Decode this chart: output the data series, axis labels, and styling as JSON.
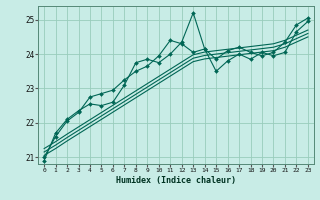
{
  "title": "",
  "xlabel": "Humidex (Indice chaleur)",
  "bg_color": "#c8ece6",
  "line_color": "#006655",
  "grid_color": "#99ccbb",
  "xlim": [
    -0.5,
    23.5
  ],
  "ylim": [
    20.8,
    25.4
  ],
  "yticks": [
    21,
    22,
    23,
    24,
    25
  ],
  "xticks": [
    0,
    1,
    2,
    3,
    4,
    5,
    6,
    7,
    8,
    9,
    10,
    11,
    12,
    13,
    14,
    15,
    16,
    17,
    18,
    19,
    20,
    21,
    22,
    23
  ],
  "series": {
    "line1": [
      20.9,
      21.7,
      22.1,
      22.35,
      22.55,
      22.5,
      22.6,
      23.1,
      23.75,
      23.85,
      23.75,
      24.0,
      24.35,
      25.2,
      24.15,
      23.5,
      23.8,
      24.0,
      23.85,
      24.05,
      23.95,
      24.05,
      24.65,
      24.95
    ],
    "line2": [
      21.0,
      21.6,
      22.05,
      22.3,
      22.75,
      22.85,
      22.95,
      23.25,
      23.5,
      23.65,
      23.95,
      24.4,
      24.3,
      24.05,
      24.15,
      23.85,
      24.1,
      24.2,
      24.05,
      23.95,
      24.05,
      24.35,
      24.85,
      25.05
    ],
    "trend1": [
      21.05,
      21.25,
      21.47,
      21.68,
      21.89,
      22.1,
      22.31,
      22.52,
      22.73,
      22.94,
      23.15,
      23.36,
      23.57,
      23.78,
      23.86,
      23.9,
      23.94,
      23.98,
      24.02,
      24.06,
      24.1,
      24.2,
      24.35,
      24.5
    ],
    "trend2": [
      21.15,
      21.35,
      21.57,
      21.78,
      21.99,
      22.2,
      22.41,
      22.62,
      22.83,
      23.04,
      23.25,
      23.46,
      23.67,
      23.88,
      23.96,
      24.0,
      24.04,
      24.08,
      24.12,
      24.16,
      24.2,
      24.3,
      24.45,
      24.6
    ],
    "trend3": [
      21.25,
      21.45,
      21.67,
      21.88,
      22.09,
      22.3,
      22.51,
      22.72,
      22.93,
      23.14,
      23.35,
      23.56,
      23.77,
      23.98,
      24.06,
      24.1,
      24.14,
      24.18,
      24.22,
      24.26,
      24.3,
      24.4,
      24.55,
      24.7
    ]
  }
}
